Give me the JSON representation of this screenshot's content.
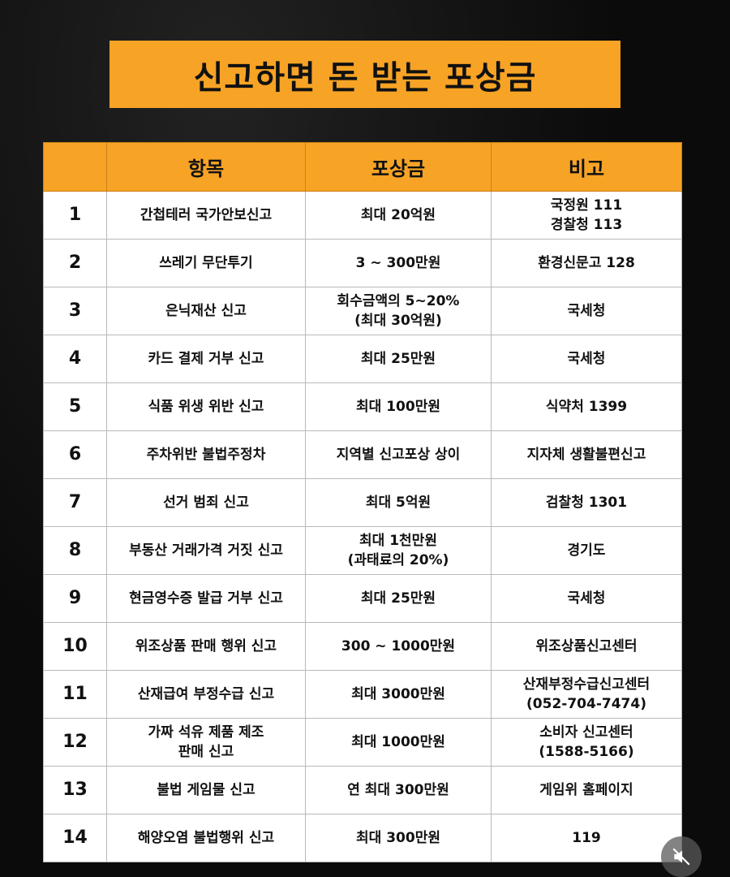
{
  "title": "신고하면 돈 받는 포상금",
  "colors": {
    "accent": "#f7a325",
    "background": "#0b0b0b"
  },
  "table": {
    "headers": [
      "",
      "항목",
      "포상금",
      "비고"
    ],
    "rows": [
      {
        "no": "1",
        "item": [
          "간첩테러 국가안보신고"
        ],
        "reward": [
          "최대 20억원"
        ],
        "note": [
          "국정원 111",
          "경찰청 113"
        ]
      },
      {
        "no": "2",
        "item": [
          "쓰레기 무단투기"
        ],
        "reward": [
          "3 ~ 300만원"
        ],
        "note": [
          "환경신문고 128"
        ]
      },
      {
        "no": "3",
        "item": [
          "은닉재산 신고"
        ],
        "reward": [
          "회수금액의 5~20%",
          "(최대 30억원)"
        ],
        "note": [
          "국세청"
        ]
      },
      {
        "no": "4",
        "item": [
          "카드 결제 거부 신고"
        ],
        "reward": [
          "최대 25만원"
        ],
        "note": [
          "국세청"
        ]
      },
      {
        "no": "5",
        "item": [
          "식품 위생 위반 신고"
        ],
        "reward": [
          "최대 100만원"
        ],
        "note": [
          "식약처 1399"
        ]
      },
      {
        "no": "6",
        "item": [
          "주차위반 불법주정차"
        ],
        "reward": [
          "지역별 신고포상 상이"
        ],
        "note": [
          "지자체 생활불편신고"
        ]
      },
      {
        "no": "7",
        "item": [
          "선거 범죄 신고"
        ],
        "reward": [
          "최대 5억원"
        ],
        "note": [
          "검찰청 1301"
        ]
      },
      {
        "no": "8",
        "item": [
          "부동산 거래가격 거짓 신고"
        ],
        "reward": [
          "최대 1천만원",
          "(과태료의 20%)"
        ],
        "note": [
          "경기도"
        ]
      },
      {
        "no": "9",
        "item": [
          "현금영수증 발급 거부 신고"
        ],
        "reward": [
          "최대 25만원"
        ],
        "note": [
          "국세청"
        ]
      },
      {
        "no": "10",
        "item": [
          "위조상품 판매 행위 신고"
        ],
        "reward": [
          "300 ~ 1000만원"
        ],
        "note": [
          "위조상품신고센터"
        ]
      },
      {
        "no": "11",
        "item": [
          "산재급여 부정수급 신고"
        ],
        "reward": [
          "최대 3000만원"
        ],
        "note": [
          "산재부정수급신고센터",
          "(052-704-7474)"
        ]
      },
      {
        "no": "12",
        "item": [
          "가짜 석유 제품 제조",
          "판매 신고"
        ],
        "reward": [
          "최대 1000만원"
        ],
        "note": [
          "소비자 신고센터",
          "(1588-5166)"
        ]
      },
      {
        "no": "13",
        "item": [
          "불법 게임물 신고"
        ],
        "reward": [
          "연 최대 300만원"
        ],
        "note": [
          "게임위 홈페이지"
        ]
      },
      {
        "no": "14",
        "item": [
          "해양오염 불법행위 신고"
        ],
        "reward": [
          "최대 300만원"
        ],
        "note": [
          "119"
        ]
      }
    ]
  },
  "mute_button": {
    "icon": "muted-speaker-icon"
  }
}
